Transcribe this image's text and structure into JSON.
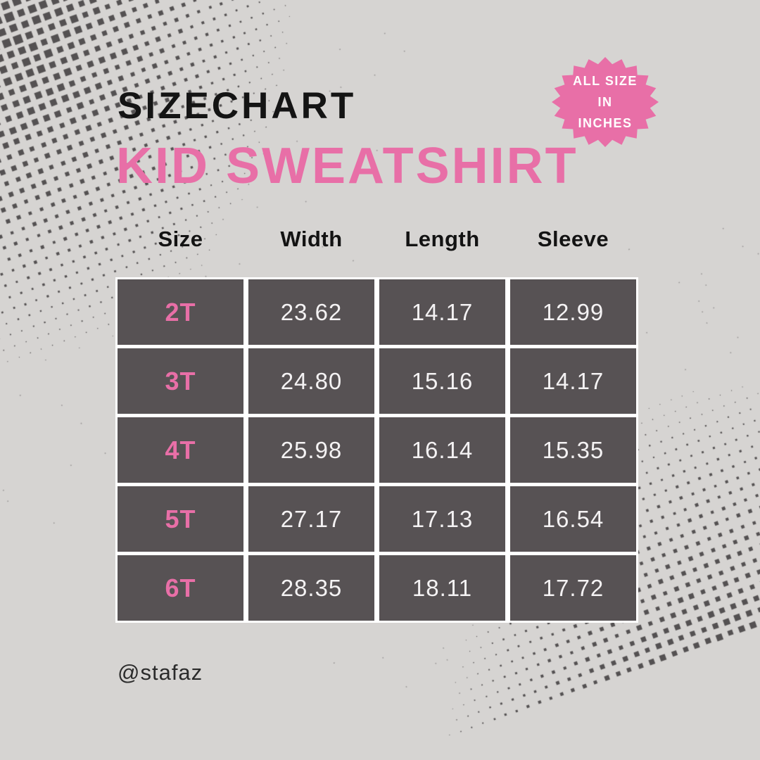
{
  "page": {
    "background_color": "#d6d4d2",
    "footer_handle": "@stafaz"
  },
  "header": {
    "title": "SIZECHART",
    "subtitle": "KID SWEATSHIRT"
  },
  "badge": {
    "lines": [
      "ALL SIZE",
      "IN",
      "INCHES"
    ],
    "color": "#e86fa7",
    "text_color": "#ffffff"
  },
  "colors": {
    "accent_pink": "#e86fa7",
    "cell_background": "#575254",
    "cell_text": "#f4f2f3",
    "heading_text": "#141414",
    "dot_color": "#4d4a4b",
    "table_gap": "#ffffff"
  },
  "chart_data": {
    "type": "table",
    "title": "SIZECHART",
    "subtitle": "KID SWEATSHIRT",
    "units_note": "ALL SIZE IN INCHES",
    "columns": [
      "Size",
      "Width",
      "Length",
      "Sleeve"
    ],
    "rows": [
      [
        "2T",
        "23.62",
        "14.17",
        "12.99"
      ],
      [
        "3T",
        "24.80",
        "15.16",
        "14.17"
      ],
      [
        "4T",
        "25.98",
        "16.14",
        "15.35"
      ],
      [
        "5T",
        "27.17",
        "17.13",
        "16.54"
      ],
      [
        "6T",
        "28.35",
        "18.11",
        "17.72"
      ]
    ]
  }
}
